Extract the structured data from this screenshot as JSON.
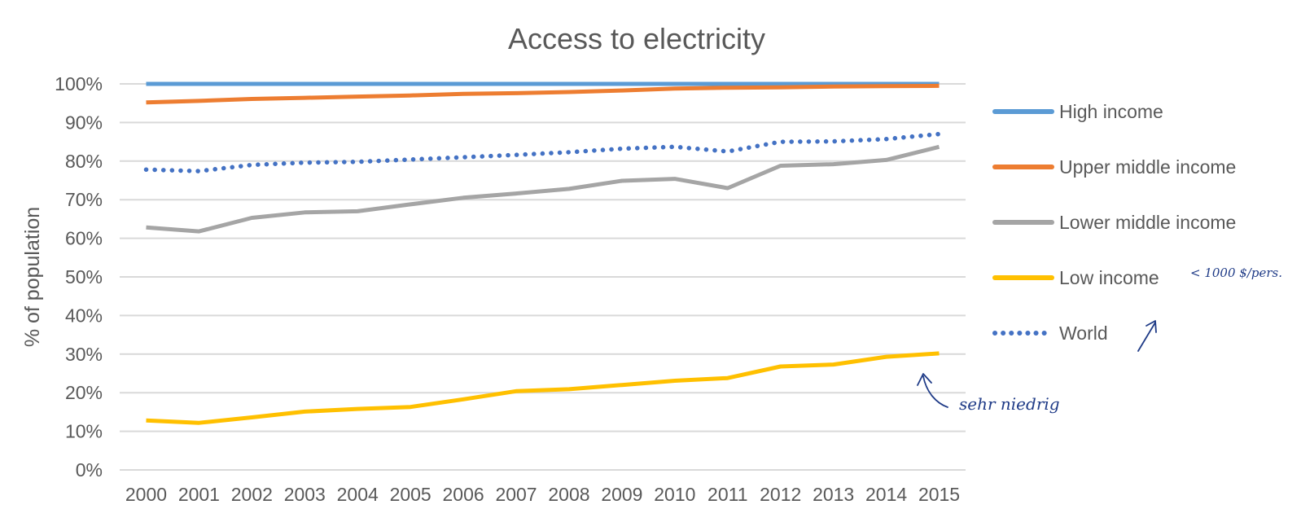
{
  "chart_data": {
    "type": "line",
    "title": "Access to electricity",
    "ylabel": "% of population",
    "xlabel": "",
    "ylim": [
      0,
      100
    ],
    "yticks": [
      "0%",
      "10%",
      "20%",
      "30%",
      "40%",
      "50%",
      "60%",
      "70%",
      "80%",
      "90%",
      "100%"
    ],
    "categories": [
      "2000",
      "2001",
      "2002",
      "2003",
      "2004",
      "2005",
      "2006",
      "2007",
      "2008",
      "2009",
      "2010",
      "2011",
      "2012",
      "2013",
      "2014",
      "2015"
    ],
    "grid": true,
    "legend_position": "right",
    "series": [
      {
        "name": "High income",
        "color": "#5b9bd5",
        "style": "solid",
        "values": [
          100,
          100,
          100,
          100,
          100,
          100,
          100,
          100,
          100,
          100,
          100,
          100,
          100,
          100,
          100,
          100
        ]
      },
      {
        "name": "Upper middle income",
        "color": "#ed7d31",
        "style": "solid",
        "values": [
          95.2,
          95.6,
          96.1,
          96.4,
          96.7,
          97.0,
          97.4,
          97.6,
          97.9,
          98.3,
          98.8,
          99.0,
          99.1,
          99.3,
          99.4,
          99.5
        ]
      },
      {
        "name": "Lower middle income",
        "color": "#a5a5a5",
        "style": "solid",
        "values": [
          62.8,
          61.8,
          65.3,
          66.7,
          67.0,
          68.8,
          70.5,
          71.6,
          72.8,
          74.9,
          75.4,
          73.0,
          78.8,
          79.2,
          80.3,
          83.7
        ]
      },
      {
        "name": "Low income",
        "color": "#ffc000",
        "style": "solid",
        "values": [
          12.8,
          12.2,
          13.6,
          15.1,
          15.8,
          16.3,
          18.3,
          20.4,
          20.9,
          22.0,
          23.1,
          23.8,
          26.8,
          27.3,
          29.3,
          30.2
        ]
      },
      {
        "name": "World",
        "color": "#4472c4",
        "style": "dotted",
        "values": [
          77.8,
          77.4,
          79.0,
          79.6,
          79.8,
          80.4,
          81.0,
          81.6,
          82.3,
          83.2,
          83.7,
          82.5,
          85.0,
          85.1,
          85.7,
          87.0
        ]
      }
    ]
  },
  "annotations": {
    "low_income_note": "sehr niedrig",
    "threshold_note": "< 1000 $/pers."
  }
}
